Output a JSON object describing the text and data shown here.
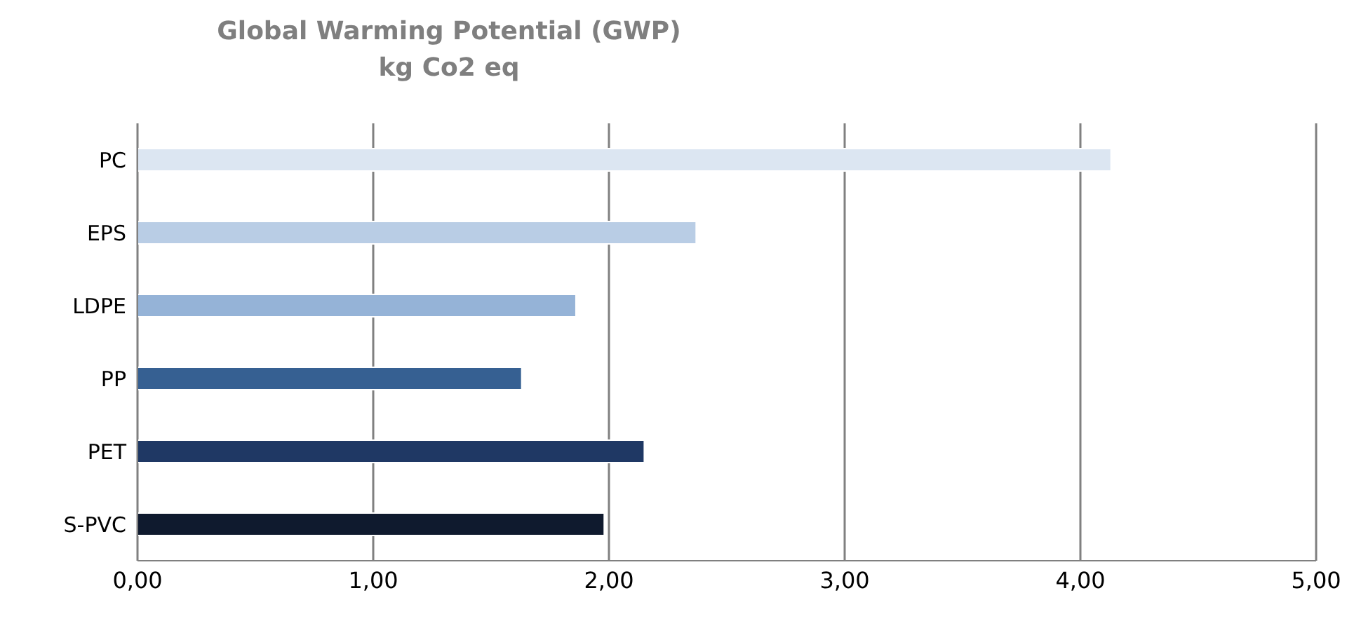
{
  "chart_data": {
    "type": "bar",
    "orientation": "horizontal",
    "title": "Global Warming Potential (GWP)",
    "subtitle": "kg Co2 eq",
    "categories": [
      "PC",
      "EPS",
      "LDPE",
      "PP",
      "PET",
      "S-PVC"
    ],
    "values": [
      4.13,
      2.37,
      1.86,
      1.63,
      2.15,
      1.98
    ],
    "colors": [
      "#dce6f2",
      "#b9cde5",
      "#95b3d7",
      "#366092",
      "#1f3864",
      "#0f1a2e"
    ],
    "xlim": [
      0,
      5
    ],
    "xticks": [
      {
        "value": 0,
        "label": "0,00"
      },
      {
        "value": 1,
        "label": "1,00"
      },
      {
        "value": 2,
        "label": "2,00"
      },
      {
        "value": 3,
        "label": "3,00"
      },
      {
        "value": 4,
        "label": "4,00"
      },
      {
        "value": 5,
        "label": "5,00"
      }
    ],
    "grid": "x"
  }
}
